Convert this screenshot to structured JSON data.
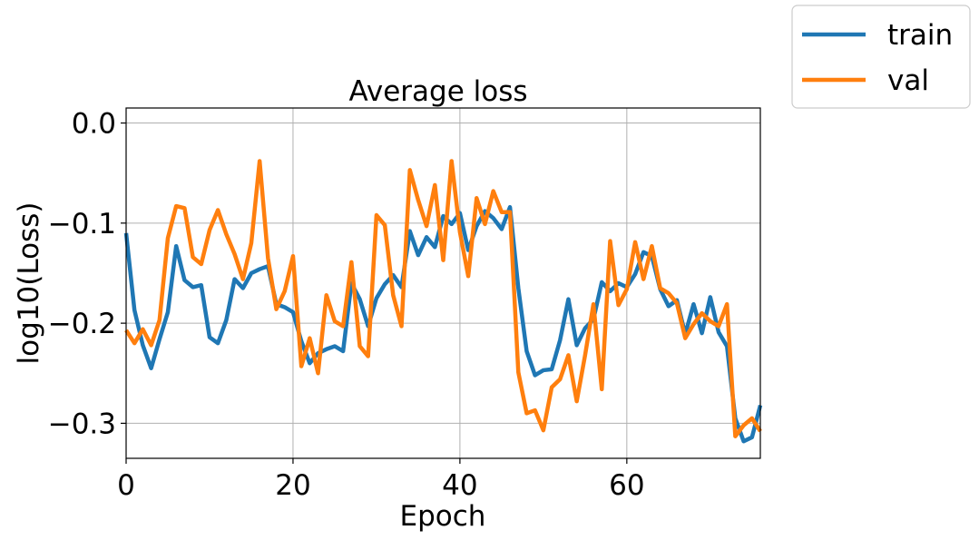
{
  "chart_data": {
    "type": "line",
    "title": "Average loss",
    "xlabel": "Epoch",
    "ylabel": "log10(Loss)",
    "xlim": [
      0,
      76
    ],
    "ylim": [
      -0.335,
      0.015
    ],
    "xticks": [
      0,
      20,
      40,
      60
    ],
    "xtick_labels": [
      "0",
      "20",
      "40",
      "60"
    ],
    "yticks": [
      0.0,
      -0.1,
      -0.2,
      -0.3
    ],
    "ytick_labels": [
      "0.0",
      "−0.1",
      "−0.2",
      "−0.3"
    ],
    "grid": true,
    "legend_position": "upper right, outside plot",
    "x": [
      0,
      1,
      2,
      3,
      4,
      5,
      6,
      7,
      8,
      9,
      10,
      11,
      12,
      13,
      14,
      15,
      16,
      17,
      18,
      19,
      20,
      21,
      22,
      23,
      24,
      25,
      26,
      27,
      28,
      29,
      30,
      31,
      32,
      33,
      34,
      35,
      36,
      37,
      38,
      39,
      40,
      41,
      42,
      43,
      44,
      45,
      46,
      47,
      48,
      49,
      50,
      51,
      52,
      53,
      54,
      55,
      56,
      57,
      58,
      59,
      60,
      61,
      62,
      63,
      64,
      65,
      66,
      67,
      68,
      69,
      70,
      71,
      72,
      73,
      74,
      75,
      76
    ],
    "series": [
      {
        "name": "train",
        "color": "#1f77b4",
        "values": [
          -0.11,
          -0.187,
          -0.222,
          -0.245,
          -0.216,
          -0.189,
          -0.123,
          -0.157,
          -0.164,
          -0.162,
          -0.214,
          -0.22,
          -0.197,
          -0.156,
          -0.165,
          -0.15,
          -0.146,
          -0.143,
          -0.181,
          -0.184,
          -0.189,
          -0.218,
          -0.24,
          -0.23,
          -0.226,
          -0.223,
          -0.228,
          -0.16,
          -0.176,
          -0.203,
          -0.175,
          -0.161,
          -0.152,
          -0.164,
          -0.108,
          -0.132,
          -0.114,
          -0.124,
          -0.093,
          -0.101,
          -0.09,
          -0.127,
          -0.103,
          -0.088,
          -0.095,
          -0.106,
          -0.084,
          -0.165,
          -0.228,
          -0.252,
          -0.247,
          -0.246,
          -0.217,
          -0.176,
          -0.222,
          -0.205,
          -0.196,
          -0.159,
          -0.168,
          -0.16,
          -0.164,
          -0.151,
          -0.129,
          -0.133,
          -0.166,
          -0.183,
          -0.177,
          -0.211,
          -0.181,
          -0.21,
          -0.174,
          -0.209,
          -0.223,
          -0.295,
          -0.318,
          -0.314,
          -0.282
        ]
      },
      {
        "name": "val",
        "color": "#ff7f0e",
        "values": [
          -0.207,
          -0.22,
          -0.206,
          -0.222,
          -0.197,
          -0.115,
          -0.083,
          -0.085,
          -0.134,
          -0.141,
          -0.107,
          -0.087,
          -0.111,
          -0.131,
          -0.156,
          -0.12,
          -0.038,
          -0.135,
          -0.186,
          -0.168,
          -0.133,
          -0.243,
          -0.215,
          -0.25,
          -0.172,
          -0.198,
          -0.203,
          -0.139,
          -0.223,
          -0.233,
          -0.092,
          -0.102,
          -0.172,
          -0.203,
          -0.047,
          -0.077,
          -0.103,
          -0.062,
          -0.137,
          -0.038,
          -0.109,
          -0.153,
          -0.075,
          -0.101,
          -0.068,
          -0.089,
          -0.089,
          -0.249,
          -0.29,
          -0.287,
          -0.307,
          -0.264,
          -0.256,
          -0.232,
          -0.278,
          -0.232,
          -0.181,
          -0.266,
          -0.118,
          -0.182,
          -0.166,
          -0.119,
          -0.156,
          -0.123,
          -0.165,
          -0.17,
          -0.18,
          -0.215,
          -0.201,
          -0.19,
          -0.198,
          -0.203,
          -0.181,
          -0.313,
          -0.302,
          -0.295,
          -0.308
        ]
      }
    ]
  }
}
